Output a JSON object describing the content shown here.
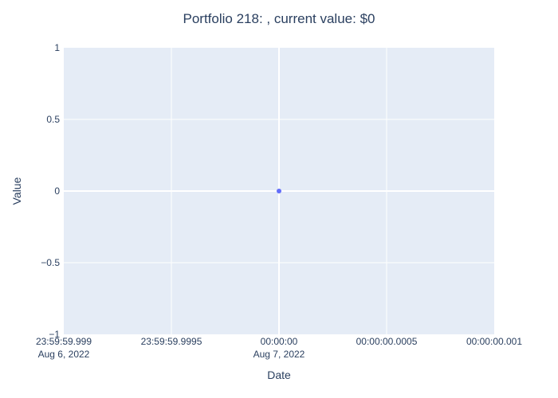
{
  "chart_data": {
    "type": "scatter",
    "title": "Portfolio 218: , current value: $0",
    "xlabel": "Date",
    "ylabel": "Value",
    "x_ticks": [
      {
        "value": -0.001,
        "lines": [
          "23:59:59.999",
          "Aug 6, 2022"
        ]
      },
      {
        "value": -0.0005,
        "lines": [
          "23:59:59.9995"
        ]
      },
      {
        "value": 0,
        "lines": [
          "00:00:00",
          "Aug 7, 2022"
        ]
      },
      {
        "value": 0.0005,
        "lines": [
          "00:00:00.0005"
        ]
      },
      {
        "value": 0.001,
        "lines": [
          "00:00:00.001"
        ]
      }
    ],
    "y_ticks": [
      {
        "value": 1,
        "label": "1"
      },
      {
        "value": 0.5,
        "label": "0.5"
      },
      {
        "value": 0,
        "label": "0"
      },
      {
        "value": -0.5,
        "label": "−0.5"
      },
      {
        "value": -1,
        "label": "−1"
      }
    ],
    "xlim": [
      -0.001,
      0.001
    ],
    "ylim": [
      -1,
      1
    ],
    "grid": true,
    "colors": {
      "plot_bg": "#e5ecf6",
      "grid": "#ffffff",
      "marker": "#636efa",
      "text": "#2a3f5f"
    },
    "series": [
      {
        "x": [
          "Aug 7, 2022 00:00:00"
        ],
        "y": [
          0
        ]
      }
    ]
  }
}
